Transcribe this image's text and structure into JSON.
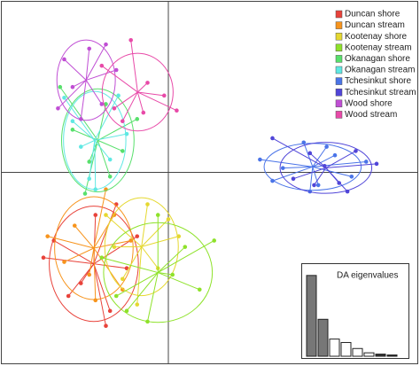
{
  "chart_data": [
    {
      "type": "scatter",
      "xlim": [
        -8,
        12
      ],
      "ylim": [
        -9,
        8
      ],
      "legend": "top-right",
      "series": [
        {
          "name": "Duncan shore",
          "color": "#e8423a",
          "x": [
            -6.0,
            -5.5,
            -4.2,
            -3.5,
            -2.8,
            -2.0,
            -1.5,
            -3.0,
            -4.8,
            -2.5
          ],
          "y": [
            -4.0,
            -3.2,
            -5.2,
            -2.0,
            -6.5,
            -4.5,
            -3.0,
            -7.2,
            -5.8,
            -1.5
          ]
        },
        {
          "name": "Duncan stream",
          "color": "#f7941d",
          "x": [
            -5.8,
            -4.5,
            -3.8,
            -3.0,
            -2.2,
            -1.8,
            -3.5,
            -2.6,
            -5.0
          ],
          "y": [
            -3.0,
            -2.5,
            -4.8,
            -0.8,
            -5.5,
            -3.2,
            -6.0,
            -2.0,
            -4.2
          ]
        },
        {
          "name": "Kootenay shore",
          "color": "#e5d830",
          "x": [
            -3.0,
            -2.2,
            -1.0,
            -0.5,
            0.5,
            -1.5,
            -2.6,
            0.0
          ],
          "y": [
            -2.0,
            -5.0,
            -1.5,
            -4.5,
            -3.0,
            -6.2,
            -3.5,
            -2.2
          ]
        },
        {
          "name": "Kootenay stream",
          "color": "#8ee22a",
          "x": [
            -3.2,
            -2.0,
            -0.5,
            0.8,
            2.2,
            1.5,
            -1.0,
            -2.5,
            0.2
          ],
          "y": [
            -4.0,
            -6.5,
            -2.0,
            -3.5,
            -3.2,
            -5.5,
            -7.0,
            -5.8,
            -4.8
          ]
        },
        {
          "name": "Okanagan shore",
          "color": "#58e06c",
          "x": [
            -5.2,
            -4.6,
            -3.8,
            -3.0,
            -2.2,
            -1.5,
            -4.0,
            -2.8
          ],
          "y": [
            4.0,
            2.0,
            0.5,
            3.2,
            1.0,
            2.5,
            -1.0,
            -0.2
          ]
        },
        {
          "name": "Okanagan stream",
          "color": "#5fe8e3",
          "x": [
            -5.0,
            -4.2,
            -3.5,
            -2.8,
            -2.0,
            -3.8,
            -4.6,
            -2.4
          ],
          "y": [
            3.5,
            1.2,
            -0.8,
            0.6,
            1.8,
            -0.3,
            2.4,
            3.6
          ]
        },
        {
          "name": "Tchesinkut shore",
          "color": "#4a74e8",
          "x": [
            4.4,
            5.5,
            6.5,
            7.2,
            8.0,
            8.8,
            9.5,
            6.8,
            7.6,
            5.0
          ],
          "y": [
            0.6,
            0.2,
            1.4,
            -0.6,
            0.8,
            -0.2,
            0.5,
            -0.9,
            1.2,
            -0.4
          ]
        },
        {
          "name": "Tchesinkut stream",
          "color": "#5045d8",
          "x": [
            5.0,
            6.0,
            6.8,
            7.5,
            8.2,
            9.0,
            10.0,
            7.0,
            8.6
          ],
          "y": [
            1.6,
            -0.3,
            0.9,
            0.3,
            -0.5,
            1.0,
            0.4,
            -0.6,
            -0.9
          ]
        },
        {
          "name": "Wood shore",
          "color": "#c04ed4",
          "x": [
            -5.0,
            -4.6,
            -3.8,
            -3.2,
            -2.5,
            -4.2,
            -3.0,
            -5.3
          ],
          "y": [
            5.3,
            4.0,
            5.8,
            3.2,
            4.8,
            2.5,
            6.0,
            3.0
          ]
        },
        {
          "name": "Wood stream",
          "color": "#e84aa8",
          "x": [
            -3.2,
            -2.6,
            -1.8,
            -1.0,
            -0.2,
            -2.2,
            -1.2,
            0.4
          ],
          "y": [
            5.0,
            3.0,
            6.2,
            4.2,
            3.6,
            2.4,
            2.8,
            2.9
          ]
        }
      ]
    },
    {
      "type": "bar",
      "title": "DA eigenvalues",
      "ylim": [
        0,
        10
      ],
      "values": [
        9.4,
        4.3,
        2.0,
        1.6,
        0.9,
        0.4,
        0.25,
        0.15
      ],
      "colors": [
        "#777777",
        "#777777",
        "#ffffff",
        "#ffffff",
        "#ffffff",
        "#ffffff",
        "#333333",
        "#333333"
      ]
    }
  ]
}
